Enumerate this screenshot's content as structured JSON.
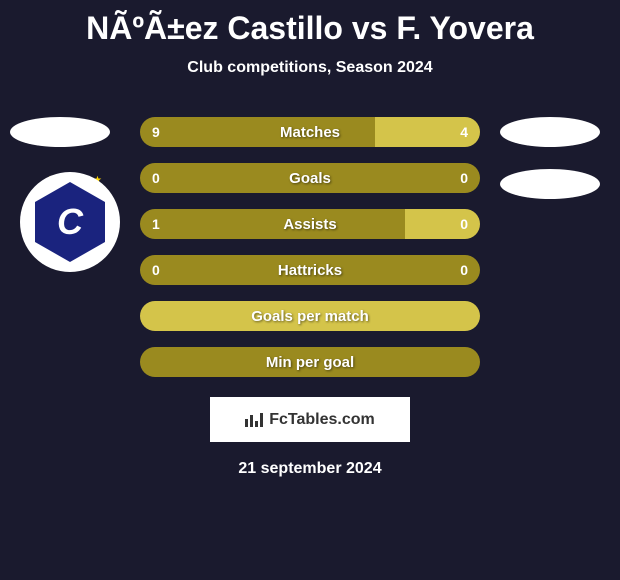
{
  "title": "NÃºÃ±ez Castillo vs F. Yovera",
  "subtitle": "Club competitions, Season 2024",
  "colors": {
    "background": "#1a1a2e",
    "bar_dark": "#9a8a1f",
    "bar_light": "#d4c44a",
    "text": "#ffffff",
    "badge_bg": "#ffffff",
    "badge_shield": "#1a237e"
  },
  "badge_letter": "C",
  "stats": [
    {
      "label": "Matches",
      "left_value": "9",
      "right_value": "4",
      "left_width_pct": 69,
      "right_width_pct": 31,
      "left_color": "#9a8a1f",
      "right_color": "#d4c44a"
    },
    {
      "label": "Goals",
      "left_value": "0",
      "right_value": "0",
      "left_width_pct": 50,
      "right_width_pct": 50,
      "left_color": "#9a8a1f",
      "right_color": "#9a8a1f"
    },
    {
      "label": "Assists",
      "left_value": "1",
      "right_value": "0",
      "left_width_pct": 78,
      "right_width_pct": 22,
      "left_color": "#9a8a1f",
      "right_color": "#d4c44a"
    },
    {
      "label": "Hattricks",
      "left_value": "0",
      "right_value": "0",
      "left_width_pct": 50,
      "right_width_pct": 50,
      "left_color": "#9a8a1f",
      "right_color": "#9a8a1f"
    },
    {
      "label": "Goals per match",
      "full_bar": true,
      "color": "#d4c44a"
    },
    {
      "label": "Min per goal",
      "full_bar": true,
      "color": "#9a8a1f"
    }
  ],
  "fctables_label": "FcTables.com",
  "date": "21 september 2024"
}
